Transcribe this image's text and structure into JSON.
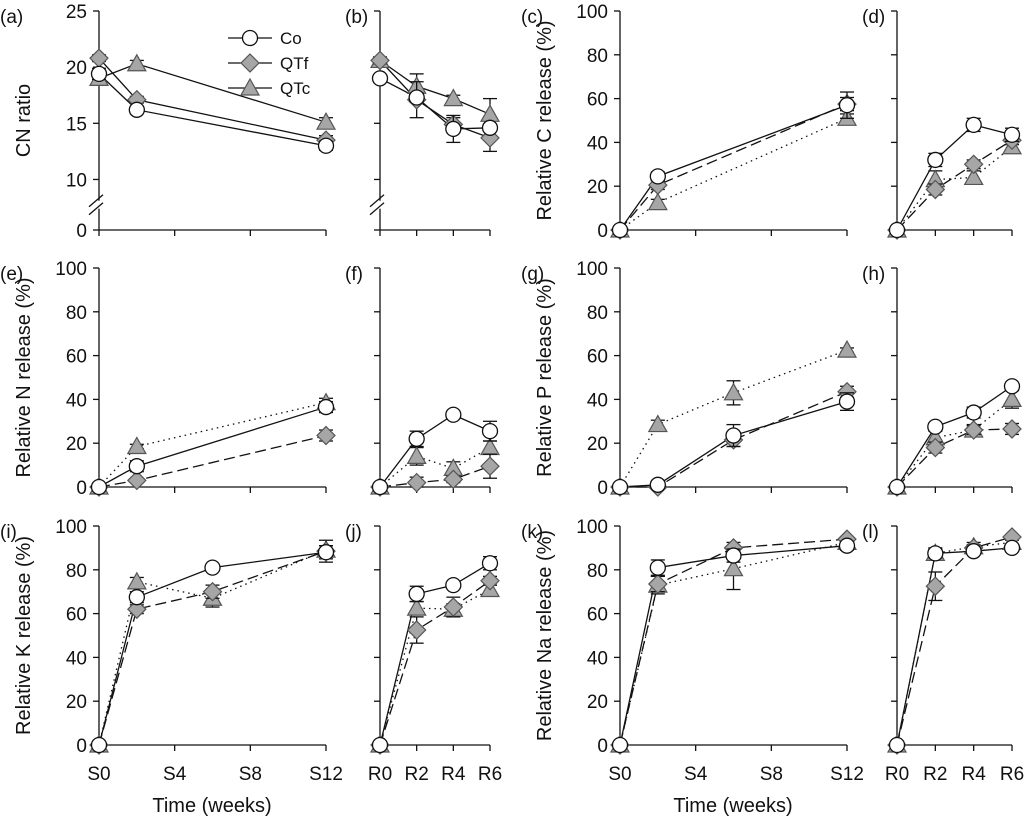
{
  "legend": [
    {
      "name": "Co",
      "marker": "circle",
      "fill": "#ffffff"
    },
    {
      "name": "QTf",
      "marker": "diamond",
      "fill": "#a6a6a6"
    },
    {
      "name": "QTc",
      "marker": "triangle",
      "fill": "#a6a6a6"
    }
  ],
  "colors": {
    "line": "#111111",
    "marker_fill_open": "#ffffff",
    "marker_fill_grey": "#a6a6a6"
  },
  "xlabel_left": "Time (weeks)",
  "xlabel_right": "Time (weeks)",
  "chart_data": [
    {
      "panel": "(a)",
      "type": "line",
      "ylabel": "CN ratio",
      "yticks": [
        0,
        10,
        15,
        20,
        25
      ],
      "ylim": [
        0,
        25
      ],
      "axis_break": [
        0,
        10
      ],
      "xticks": [
        "S0",
        "S4",
        "S8",
        "S12"
      ],
      "xtick_values": [
        0,
        4,
        8,
        12
      ],
      "x": [
        0,
        2,
        12
      ],
      "series": [
        {
          "name": "Co",
          "values": [
            19.4,
            16.2,
            13.0
          ],
          "err": [
            0.5,
            0.3,
            0.4
          ],
          "linestyle": "solid"
        },
        {
          "name": "QTf",
          "values": [
            20.8,
            17.1,
            13.5
          ],
          "err": [
            0.3,
            0.3,
            0.4
          ],
          "linestyle": "solid"
        },
        {
          "name": "QTc",
          "values": [
            19.0,
            20.3,
            15.1
          ],
          "err": [
            0.3,
            0.3,
            0.4
          ],
          "linestyle": "solid"
        }
      ]
    },
    {
      "panel": "(b)",
      "type": "line",
      "ylabel": "",
      "yticks": [
        0,
        10,
        15,
        20,
        25
      ],
      "ylim": [
        0,
        25
      ],
      "axis_break": [
        0,
        10
      ],
      "xticks": [
        "R0",
        "R2",
        "R4",
        "R6"
      ],
      "xtick_values": [
        0,
        2,
        4,
        6
      ],
      "x": [
        0,
        2,
        4,
        6
      ],
      "series": [
        {
          "name": "Co",
          "values": [
            19.0,
            17.3,
            14.5,
            14.6
          ],
          "err": [
            0.3,
            0.4,
            1.2,
            0.3
          ],
          "linestyle": "solid"
        },
        {
          "name": "QTf",
          "values": [
            20.6,
            17.1,
            14.9,
            13.7
          ],
          "err": [
            0.3,
            1.6,
            0.6,
            1.2
          ],
          "linestyle": "solid"
        },
        {
          "name": "QTc",
          "values": [
            20.6,
            18.3,
            17.2,
            15.8
          ],
          "err": [
            0.3,
            1.1,
            0.3,
            1.4
          ],
          "linestyle": "solid"
        }
      ]
    },
    {
      "panel": "(c)",
      "type": "line",
      "ylabel": "Relative C release (%)",
      "yticks": [
        0,
        20,
        40,
        60,
        80,
        100
      ],
      "ylim": [
        0,
        100
      ],
      "xticks": [
        "S0",
        "S4",
        "S8",
        "S12"
      ],
      "xtick_values": [
        0,
        4,
        8,
        12
      ],
      "x": [
        0,
        2,
        12
      ],
      "series": [
        {
          "name": "Co",
          "values": [
            0,
            24.5,
            57
          ],
          "err": [
            0,
            2,
            6
          ],
          "linestyle": "solid"
        },
        {
          "name": "QTf",
          "values": [
            0,
            20.5,
            57.5
          ],
          "err": [
            0,
            2,
            3
          ],
          "linestyle": "dashed"
        },
        {
          "name": "QTc",
          "values": [
            0,
            12.5,
            51
          ],
          "err": [
            0,
            1.5,
            2
          ],
          "linestyle": "dotted"
        }
      ]
    },
    {
      "panel": "(d)",
      "type": "line",
      "ylabel": "",
      "yticks": [
        0,
        20,
        40,
        60,
        80,
        100
      ],
      "ylim": [
        0,
        100
      ],
      "xticks": [
        "R0",
        "R2",
        "R4",
        "R6"
      ],
      "xtick_values": [
        0,
        2,
        4,
        6
      ],
      "x": [
        0,
        2,
        4,
        6
      ],
      "series": [
        {
          "name": "Co",
          "values": [
            0,
            32,
            48,
            43.5
          ],
          "err": [
            0,
            3,
            3,
            3
          ],
          "linestyle": "solid"
        },
        {
          "name": "QTf",
          "values": [
            0,
            18.5,
            30,
            41
          ],
          "err": [
            0,
            2.5,
            2,
            2
          ],
          "linestyle": "dashed"
        },
        {
          "name": "QTc",
          "values": [
            0,
            23,
            24,
            38
          ],
          "err": [
            0,
            4,
            3,
            2
          ],
          "linestyle": "dotted"
        }
      ]
    },
    {
      "panel": "(e)",
      "type": "line",
      "ylabel": "Relative N release (%)",
      "yticks": [
        0,
        20,
        40,
        60,
        80,
        100
      ],
      "ylim": [
        0,
        100
      ],
      "xticks": [
        "S0",
        "S4",
        "S8",
        "S12"
      ],
      "xtick_values": [
        0,
        4,
        8,
        12
      ],
      "x": [
        0,
        2,
        12
      ],
      "series": [
        {
          "name": "Co",
          "values": [
            0,
            9.5,
            36.5
          ],
          "err": [
            0,
            2.5,
            2.5
          ],
          "linestyle": "solid"
        },
        {
          "name": "QTf",
          "values": [
            0,
            3,
            23.5
          ],
          "err": [
            0,
            1,
            2.5
          ],
          "linestyle": "dashed"
        },
        {
          "name": "QTc",
          "values": [
            0,
            18.5,
            38.5
          ],
          "err": [
            0,
            1,
            2
          ],
          "linestyle": "dotted"
        }
      ]
    },
    {
      "panel": "(f)",
      "type": "line",
      "ylabel": "",
      "yticks": [
        0,
        20,
        40,
        60,
        80,
        100
      ],
      "ylim": [
        0,
        100
      ],
      "xticks": [
        "R0",
        "R2",
        "R4",
        "R6"
      ],
      "xtick_values": [
        0,
        2,
        4,
        6
      ],
      "x": [
        0,
        2,
        4,
        6
      ],
      "series": [
        {
          "name": "Co",
          "values": [
            0,
            22,
            33,
            25.5
          ],
          "err": [
            0,
            3.5,
            1.5,
            4.5
          ],
          "linestyle": "solid"
        },
        {
          "name": "QTf",
          "values": [
            0,
            2,
            3.5,
            9.5
          ],
          "err": [
            0,
            2.5,
            1.5,
            5.5
          ],
          "linestyle": "dashed"
        },
        {
          "name": "QTc",
          "values": [
            0,
            14,
            8.5,
            18
          ],
          "err": [
            0,
            4,
            3,
            3
          ],
          "linestyle": "dotted"
        }
      ]
    },
    {
      "panel": "(g)",
      "type": "line",
      "ylabel": "Relative P release (%)",
      "yticks": [
        0,
        20,
        40,
        60,
        80,
        100
      ],
      "ylim": [
        0,
        100
      ],
      "xticks": [
        "S0",
        "S4",
        "S8",
        "S12"
      ],
      "xtick_values": [
        0,
        4,
        8,
        12
      ],
      "x": [
        0,
        2,
        6,
        12
      ],
      "series": [
        {
          "name": "Co",
          "values": [
            0,
            1,
            23.5,
            39
          ],
          "err": [
            0,
            0.5,
            5,
            4
          ],
          "linestyle": "solid"
        },
        {
          "name": "QTf",
          "values": [
            0,
            0,
            21.5,
            43.5
          ],
          "err": [
            0,
            0,
            3,
            2.5
          ],
          "linestyle": "dashed"
        },
        {
          "name": "QTc",
          "values": [
            0,
            28.5,
            43,
            62.5
          ],
          "err": [
            0,
            2,
            5.5,
            1
          ],
          "linestyle": "dotted"
        }
      ]
    },
    {
      "panel": "(h)",
      "type": "line",
      "ylabel": "",
      "yticks": [
        0,
        20,
        40,
        60,
        80,
        100
      ],
      "ylim": [
        0,
        100
      ],
      "xticks": [
        "R0",
        "R2",
        "R4",
        "R6"
      ],
      "xtick_values": [
        0,
        2,
        4,
        6
      ],
      "x": [
        0,
        2,
        4,
        6
      ],
      "series": [
        {
          "name": "Co",
          "values": [
            0,
            27.5,
            34,
            46
          ],
          "err": [
            0,
            1.5,
            2.5,
            1.5
          ],
          "linestyle": "solid"
        },
        {
          "name": "QTf",
          "values": [
            0,
            18,
            26,
            26.5
          ],
          "err": [
            0,
            2.5,
            2,
            2.5
          ],
          "linestyle": "dashed"
        },
        {
          "name": "QTc",
          "values": [
            0,
            22.5,
            26,
            40
          ],
          "err": [
            0,
            3,
            2.5,
            4
          ],
          "linestyle": "dotted"
        }
      ]
    },
    {
      "panel": "(i)",
      "type": "line",
      "ylabel": "Relative K release (%)",
      "yticks": [
        0,
        20,
        40,
        60,
        80,
        100
      ],
      "ylim": [
        0,
        100
      ],
      "xticks": [
        "S0",
        "S4",
        "S8",
        "S12"
      ],
      "xtick_values": [
        0,
        4,
        8,
        12
      ],
      "x": [
        0,
        2,
        6,
        12
      ],
      "series": [
        {
          "name": "Co",
          "values": [
            0,
            67.5,
            81,
            88
          ],
          "err": [
            0,
            2.5,
            1,
            3
          ],
          "linestyle": "solid"
        },
        {
          "name": "QTf",
          "values": [
            0,
            62,
            70,
            88.5
          ],
          "err": [
            0,
            2,
            3,
            5
          ],
          "linestyle": "dashed"
        },
        {
          "name": "QTc",
          "values": [
            0,
            74.5,
            67,
            89
          ],
          "err": [
            0,
            2,
            4,
            2
          ],
          "linestyle": "dotted"
        }
      ]
    },
    {
      "panel": "(j)",
      "type": "line",
      "ylabel": "",
      "yticks": [
        0,
        20,
        40,
        60,
        80,
        100
      ],
      "ylim": [
        0,
        100
      ],
      "xticks": [
        "R0",
        "R2",
        "R4",
        "R6"
      ],
      "xtick_values": [
        0,
        2,
        4,
        6
      ],
      "x": [
        0,
        2,
        4,
        6
      ],
      "series": [
        {
          "name": "Co",
          "values": [
            0,
            69,
            73,
            83
          ],
          "err": [
            0,
            3.5,
            1.5,
            3
          ],
          "linestyle": "solid"
        },
        {
          "name": "QTf",
          "values": [
            0,
            52.5,
            63,
            75
          ],
          "err": [
            0,
            6,
            4.5,
            2
          ],
          "linestyle": "dashed"
        },
        {
          "name": "QTc",
          "values": [
            0,
            62.5,
            62,
            71
          ],
          "err": [
            0,
            3,
            2.5,
            2
          ],
          "linestyle": "dotted"
        }
      ]
    },
    {
      "panel": "(k)",
      "type": "line",
      "ylabel": "Relative Na release (%)",
      "yticks": [
        0,
        20,
        40,
        60,
        80,
        100
      ],
      "ylim": [
        0,
        100
      ],
      "xticks": [
        "S0",
        "S4",
        "S8",
        "S12"
      ],
      "xtick_values": [
        0,
        4,
        8,
        12
      ],
      "x": [
        0,
        2,
        6,
        12
      ],
      "series": [
        {
          "name": "Co",
          "values": [
            0,
            81,
            86.5,
            91
          ],
          "err": [
            0,
            3.5,
            3,
            2
          ],
          "linestyle": "solid"
        },
        {
          "name": "QTf",
          "values": [
            0,
            73.5,
            90,
            94
          ],
          "err": [
            0,
            3.5,
            2.5,
            1
          ],
          "linestyle": "dashed"
        },
        {
          "name": "QTc",
          "values": [
            0,
            73,
            80.5,
            92.5
          ],
          "err": [
            0,
            4,
            9.5,
            1.5
          ],
          "linestyle": "dotted"
        }
      ]
    },
    {
      "panel": "(l)",
      "type": "line",
      "ylabel": "",
      "yticks": [
        0,
        20,
        40,
        60,
        80,
        100
      ],
      "ylim": [
        0,
        100
      ],
      "xticks": [
        "R0",
        "R2",
        "R4",
        "R6"
      ],
      "xtick_values": [
        0,
        2,
        4,
        6
      ],
      "x": [
        0,
        2,
        4,
        6
      ],
      "series": [
        {
          "name": "Co",
          "values": [
            0,
            87.5,
            88.5,
            90
          ],
          "err": [
            0,
            2,
            1,
            1
          ],
          "linestyle": "solid"
        },
        {
          "name": "QTf",
          "values": [
            0,
            72.5,
            90,
            95
          ],
          "err": [
            0,
            6.5,
            1.5,
            1
          ],
          "linestyle": "dashed"
        },
        {
          "name": "QTc",
          "values": [
            0,
            87.5,
            90.5,
            92.5
          ],
          "err": [
            0,
            2.5,
            2,
            1
          ],
          "linestyle": "dotted"
        }
      ]
    }
  ]
}
